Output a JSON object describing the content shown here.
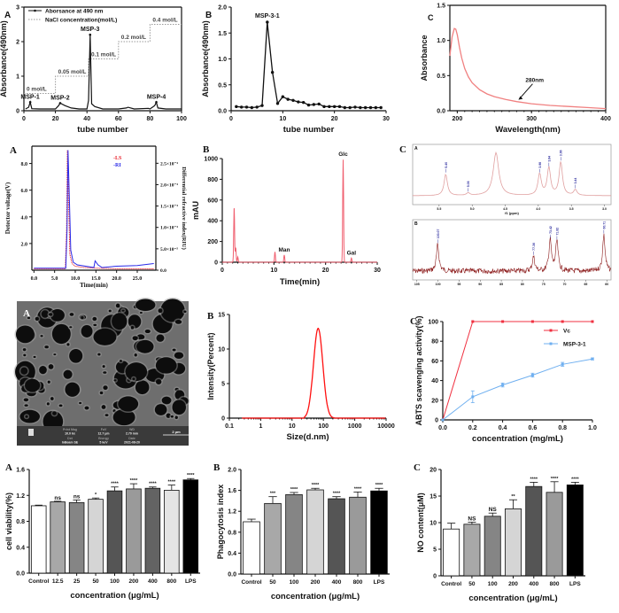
{
  "chart_data": [
    {
      "panel": "A",
      "type": "line",
      "xlabel": "tube number",
      "ylabel": "Absorbance(490nm)",
      "xlim": [
        0,
        100
      ],
      "ylim": [
        0,
        3
      ],
      "xticks": [
        "0",
        "20",
        "40",
        "60",
        "80",
        "100"
      ],
      "yticks": [
        "0",
        "1",
        "2",
        "3"
      ],
      "legend": [
        "Aborsance at 490 nm",
        "NaCl concentration(mol/L)"
      ],
      "series": [
        {
          "name": "Aborsance at 490 nm",
          "color": "#111111",
          "points": [
            [
              1,
              0.05
            ],
            [
              3,
              0.1
            ],
            [
              4,
              0.25
            ],
            [
              5,
              0.06
            ],
            [
              10,
              0.05
            ],
            [
              20,
              0.05
            ],
            [
              22,
              0.15
            ],
            [
              23,
              0.22
            ],
            [
              26,
              0.15
            ],
            [
              30,
              0.08
            ],
            [
              35,
              0.05
            ],
            [
              40,
              0.05
            ],
            [
              41,
              0.3
            ],
            [
              42,
              2.2
            ],
            [
              43,
              0.2
            ],
            [
              45,
              0.12
            ],
            [
              50,
              0.05
            ],
            [
              60,
              0.05
            ],
            [
              65,
              0.08
            ],
            [
              66,
              0.1
            ],
            [
              70,
              0.05
            ],
            [
              79,
              0.07
            ],
            [
              80,
              0.05
            ],
            [
              83,
              0.15
            ],
            [
              84,
              0.25
            ],
            [
              85,
              0.08
            ],
            [
              90,
              0.05
            ],
            [
              100,
              0.05
            ]
          ]
        },
        {
          "name": "NaCl concentration(mol/L)",
          "color": "#999999",
          "steps": [
            [
              0,
              20,
              0.5
            ],
            [
              20,
              41,
              1.0
            ],
            [
              41,
              60,
              1.5
            ],
            [
              60,
              80,
              2.0
            ],
            [
              80,
              100,
              2.5
            ]
          ]
        }
      ],
      "step_labels": [
        "0 mol/L",
        "0.05 mol/L",
        "0.1 mol/L",
        "0.2 mol/L",
        "0.4 mol/L"
      ],
      "peaks": [
        {
          "label": "MSP-1",
          "x": 4,
          "y": 0.25
        },
        {
          "label": "MSP-2",
          "x": 23,
          "y": 0.22
        },
        {
          "label": "MSP-3",
          "x": 42,
          "y": 2.2
        },
        {
          "label": "MSP-4",
          "x": 84,
          "y": 0.25
        }
      ]
    },
    {
      "panel": "B",
      "type": "line",
      "xlabel": "tube number",
      "ylabel": "Absorbance(490nm)",
      "xlim": [
        0,
        30
      ],
      "ylim": [
        0,
        2
      ],
      "xticks": [
        "0",
        "10",
        "20",
        "30"
      ],
      "yticks": [
        "0.0",
        "0.5",
        "1.0",
        "1.5",
        "2.0"
      ],
      "x": [
        1,
        2,
        3,
        4,
        5,
        6,
        7,
        8,
        9,
        10,
        11,
        12,
        13,
        14,
        15,
        16,
        17,
        18,
        19,
        20,
        21,
        22,
        23,
        24,
        25,
        26,
        27,
        28,
        29
      ],
      "values": [
        0.08,
        0.07,
        0.07,
        0.06,
        0.07,
        0.1,
        1.71,
        0.74,
        0.14,
        0.27,
        0.22,
        0.2,
        0.17,
        0.16,
        0.11,
        0.12,
        0.13,
        0.08,
        0.08,
        0.08,
        0.08,
        0.06,
        0.06,
        0.07,
        0.06,
        0.06,
        0.06,
        0.06,
        0.06
      ],
      "peaks": [
        {
          "label": "MSP-3-1",
          "x": 7,
          "y": 1.71
        }
      ]
    },
    {
      "panel": "C",
      "type": "line",
      "xlabel": "Wavelength(nm)",
      "ylabel": "Absorbance",
      "xlim": [
        190,
        400
      ],
      "ylim": [
        0,
        1.5
      ],
      "xticks": [
        "200",
        "300",
        "400"
      ],
      "yticks": [
        "0.0",
        "0.5",
        "1.0",
        "1.5"
      ],
      "color": "#f08080",
      "points": [
        [
          190,
          0.78
        ],
        [
          193,
          1.05
        ],
        [
          196,
          1.17
        ],
        [
          198,
          1.16
        ],
        [
          200,
          1.08
        ],
        [
          203,
          0.9
        ],
        [
          206,
          0.75
        ],
        [
          210,
          0.6
        ],
        [
          215,
          0.48
        ],
        [
          220,
          0.4
        ],
        [
          230,
          0.3
        ],
        [
          240,
          0.24
        ],
        [
          250,
          0.2
        ],
        [
          265,
          0.16
        ],
        [
          280,
          0.13
        ],
        [
          300,
          0.1
        ],
        [
          325,
          0.075
        ],
        [
          350,
          0.06
        ],
        [
          375,
          0.045
        ],
        [
          400,
          0.03
        ]
      ],
      "annotation": {
        "label": "280nm",
        "x": 280,
        "y": 0.13
      }
    },
    {
      "panel": "A",
      "type": "line",
      "xlabel": "Time(min)",
      "ylabel": "Detector voltage(V)",
      "y2label": "Differential refractive index(RIU)",
      "xlim": [
        -0.5,
        29.5
      ],
      "ylim": [
        0,
        9.3
      ],
      "xticks": [
        "0.0",
        "5.0",
        "10.0",
        "15.0",
        "20.0",
        "25.0"
      ],
      "yticks": [
        "2.0",
        "4.0",
        "6.0",
        "8.0"
      ],
      "y2ticks": [
        "0.0",
        "5.0×10⁻⁵",
        "1.0×10⁻⁴",
        "1.5×10⁻⁴",
        "2.0×10⁻⁴",
        "2.5×10⁻⁴"
      ],
      "y2values": [
        0,
        5e-05,
        0.0001,
        0.00015,
        0.0002,
        0.00025
      ],
      "y2lim": [
        0,
        0.00029
      ],
      "legend": [
        "-LS",
        "-RI"
      ],
      "series": [
        {
          "name": "-LS",
          "color": "#e8202a",
          "points": [
            [
              0,
              0.1
            ],
            [
              7.6,
              0.1
            ],
            [
              7.9,
              3
            ],
            [
              8.1,
              9
            ],
            [
              8.4,
              5
            ],
            [
              8.7,
              1.2
            ],
            [
              9.2,
              0.5
            ],
            [
              10,
              0.3
            ],
            [
              12,
              0.2
            ],
            [
              15,
              0.15
            ],
            [
              20,
              0.1
            ],
            [
              29,
              0.1
            ]
          ]
        },
        {
          "name": "-RI",
          "color": "#2a2ae8",
          "points": [
            [
              0,
              0.15
            ],
            [
              7.7,
              0.15
            ],
            [
              8.0,
              3
            ],
            [
              8.25,
              9
            ],
            [
              8.6,
              5
            ],
            [
              8.9,
              1.5
            ],
            [
              9.5,
              0.6
            ],
            [
              10.5,
              0.4
            ],
            [
              14.5,
              0.2
            ],
            [
              14.8,
              0.7
            ],
            [
              15.5,
              0.4
            ],
            [
              16.5,
              0.2
            ],
            [
              20,
              0.3
            ],
            [
              25,
              0.35
            ],
            [
              29,
              0.5
            ]
          ]
        }
      ]
    },
    {
      "panel": "B",
      "type": "line",
      "xlabel": "Time(min)",
      "ylabel": "mAU",
      "xlim": [
        0,
        30
      ],
      "ylim": [
        0,
        1000
      ],
      "xticks": [
        "0",
        "10",
        "20",
        "30"
      ],
      "yticks": [
        "0",
        "200",
        "400",
        "600",
        "800",
        "1000"
      ],
      "color": "#f06070",
      "peaks": [
        {
          "label": "",
          "x": 2.3,
          "y": 530
        },
        {
          "label": "",
          "x": 2.6,
          "y": 140
        },
        {
          "label": "",
          "x": 3.0,
          "y": 50
        },
        {
          "label": "",
          "x": 10.2,
          "y": 100
        },
        {
          "label": "Man",
          "x": 12.0,
          "y": 70
        },
        {
          "label": "Glc",
          "x": 23.4,
          "y": 990
        },
        {
          "label": "Gal",
          "x": 25.0,
          "y": 40
        }
      ]
    },
    {
      "panel": "C",
      "type": "line",
      "spectra": [
        {
          "sub": "A",
          "xlabel": "f1 (ppm)",
          "xlim": [
            5.9,
            2.9
          ],
          "xticks": [
            "5.5",
            "5.0",
            "4.5",
            "4.0",
            "3.5",
            "3.0"
          ],
          "color": "#e0a0a0",
          "peaks": [
            {
              "label": "5.40",
              "x": 5.4,
              "y": 0.45
            },
            {
              "label": "5.06",
              "x": 5.06,
              "y": 0.05
            },
            {
              "label": "3.98",
              "x": 3.98,
              "y": 0.45
            },
            {
              "label": "3.84",
              "x": 3.84,
              "y": 0.58
            },
            {
              "label": "3.66",
              "x": 3.66,
              "y": 0.7
            },
            {
              "label": "3.44",
              "x": 3.44,
              "y": 0.12
            }
          ],
          "solvent_peak_ppm": 4.64
        },
        {
          "sub": "B",
          "xlabel": "",
          "xlim": [
            106,
            59
          ],
          "xticks": [
            "105",
            "100",
            "95",
            "90",
            "85",
            "80",
            "75",
            "70",
            "65",
            "60"
          ],
          "color": "#8b1a1a",
          "peaks": [
            {
              "label": "100.07",
              "x": 100.07,
              "y": 0.55
            },
            {
              "label": "77.36",
              "x": 77.36,
              "y": 0.3
            },
            {
              "label": "73.42",
              "x": 73.42,
              "y": 0.65
            },
            {
              "label": "71.82",
              "x": 71.82,
              "y": 0.62
            },
            {
              "label": "60.71",
              "x": 60.71,
              "y": 0.75
            }
          ]
        }
      ]
    },
    {
      "panel": "A",
      "type": "image",
      "info": [
        {
          "label": "Print Mag",
          "value": "10.0 kx"
        },
        {
          "label": "FoV",
          "value": "12.7 μm"
        },
        {
          "label": "WD",
          "value": "2.70 mm"
        },
        {
          "label": "Det",
          "value": "InBeam SE"
        },
        {
          "label": "Energy",
          "value": "5 keV"
        },
        {
          "label": "Date",
          "value": "2021-08-20"
        }
      ],
      "scale_bar": "2 μm"
    },
    {
      "panel": "B",
      "type": "line",
      "xlabel": "Size(d.nm)",
      "ylabel": "Intensity(Percent)",
      "xscale": "log",
      "xlim": [
        0.1,
        10000
      ],
      "ylim": [
        0,
        15
      ],
      "xticks": [
        "0.1",
        "1",
        "10",
        "100",
        "1000",
        "10000"
      ],
      "yticks": [
        "0",
        "5",
        "10",
        "15"
      ],
      "color": "#ff1010",
      "peak": {
        "x": 68,
        "y": 13.0
      },
      "range": [
        25,
        220
      ]
    },
    {
      "panel": "C",
      "type": "line",
      "xlabel": "concentration (mg/mL)",
      "ylabel": "ABTS scavenging activity(%)",
      "xlim": [
        0,
        1.0
      ],
      "ylim": [
        0,
        100
      ],
      "xticks": [
        "0.0",
        "0.2",
        "0.4",
        "0.6",
        "0.8",
        "1.0"
      ],
      "yticks": [
        "0",
        "20",
        "40",
        "60",
        "80",
        "100"
      ],
      "series": [
        {
          "name": "Vc",
          "color": "#f03040",
          "x": [
            0,
            0.2,
            0.4,
            0.6,
            0.8,
            1.0
          ],
          "values": [
            0,
            100,
            100,
            100,
            100,
            100
          ],
          "errors": [
            0,
            0,
            0,
            0,
            0,
            0
          ]
        },
        {
          "name": "MSP-3-1",
          "color": "#70b0f0",
          "x": [
            0,
            0.2,
            0.4,
            0.6,
            0.8,
            1.0
          ],
          "values": [
            0,
            23.5,
            35.5,
            45.5,
            56.5,
            62
          ],
          "errors": [
            0,
            6,
            2,
            2,
            2,
            1
          ]
        }
      ]
    },
    {
      "panel": "A",
      "type": "bar",
      "xlabel": "concentration (μg/mL)",
      "ylabel": "cell viability(%)",
      "ylim": [
        0,
        1.6
      ],
      "yticks": [
        "0.0",
        "0.4",
        "0.8",
        "1.2",
        "1.6"
      ],
      "categories": [
        "Control",
        "12.5",
        "25",
        "50",
        "100",
        "200",
        "400",
        "800",
        "LPS"
      ],
      "values": [
        1.04,
        1.1,
        1.09,
        1.14,
        1.27,
        1.3,
        1.31,
        1.28,
        1.44
      ],
      "errors": [
        0.01,
        0.01,
        0.04,
        0.02,
        0.06,
        0.08,
        0.02,
        0.08,
        0.02
      ],
      "significance": [
        "",
        "ns",
        "ns",
        "*",
        "****",
        "****",
        "****",
        "****",
        "****"
      ],
      "colors": [
        "#ffffff",
        "#a8a8a8",
        "#858585",
        "#d5d5d5",
        "#555555",
        "#9a9a9a",
        "#636363",
        "#e4e4e4",
        "#000000"
      ]
    },
    {
      "panel": "B",
      "type": "bar",
      "xlabel": "concentration (μg/mL)",
      "ylabel": "Phagocytosis index",
      "ylim": [
        0,
        2.0
      ],
      "yticks": [
        "0.0",
        "0.4",
        "0.8",
        "1.2",
        "1.6",
        "2.0"
      ],
      "categories": [
        "Control",
        "50",
        "100",
        "200",
        "400",
        "800",
        "LPS"
      ],
      "values": [
        1.0,
        1.35,
        1.52,
        1.61,
        1.44,
        1.47,
        1.59
      ],
      "errors": [
        0.05,
        0.13,
        0.04,
        0.03,
        0.04,
        0.1,
        0.05
      ],
      "significance": [
        "",
        "***",
        "****",
        "****",
        "****",
        "****",
        "****"
      ],
      "colors": [
        "#ffffff",
        "#a8a8a8",
        "#858585",
        "#d5d5d5",
        "#555555",
        "#9a9a9a",
        "#000000"
      ]
    },
    {
      "panel": "C",
      "type": "bar",
      "xlabel": "concentration (μg/mL)",
      "ylabel": "NO content(μM)",
      "ylim": [
        0,
        20
      ],
      "yticks": [
        "0",
        "5",
        "10",
        "15",
        "20"
      ],
      "categories": [
        "Control",
        "50",
        "100",
        "200",
        "400",
        "800",
        "LPS"
      ],
      "values": [
        8.8,
        9.7,
        11.2,
        12.6,
        16.8,
        15.7,
        17.1
      ],
      "errors": [
        1.1,
        0.4,
        0.6,
        1.7,
        0.8,
        2.0,
        0.5
      ],
      "significance": [
        "",
        "NS",
        "NS",
        "**",
        "****",
        "****",
        "****"
      ],
      "colors": [
        "#ffffff",
        "#a8a8a8",
        "#858585",
        "#d5d5d5",
        "#555555",
        "#9a9a9a",
        "#000000"
      ]
    }
  ]
}
